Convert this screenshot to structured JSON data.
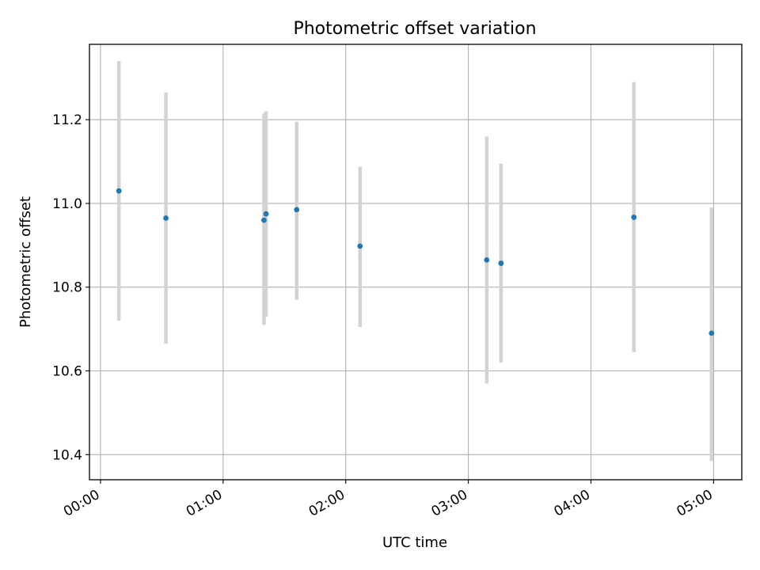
{
  "chart_data": {
    "type": "scatter",
    "title": "Photometric offset variation",
    "xlabel": "UTC time",
    "ylabel": "Photometric offset",
    "x_tick_labels": [
      "00:00",
      "01:00",
      "02:00",
      "03:00",
      "04:00",
      "05:00"
    ],
    "x_tick_hours": [
      0,
      1,
      2,
      3,
      4,
      5
    ],
    "y_tick_labels": [
      "10.4",
      "10.6",
      "10.8",
      "11.0",
      "11.2"
    ],
    "y_tick_values": [
      10.4,
      10.6,
      10.8,
      11.0,
      11.2
    ],
    "xlim_hours": [
      -0.09,
      5.23
    ],
    "ylim": [
      10.34,
      11.38
    ],
    "grid": true,
    "marker_color": "#1f77b4",
    "errorbar_color": "#d3d3d3",
    "points": [
      {
        "x": "00:09",
        "y": 11.03,
        "ylow": 10.72,
        "yhigh": 11.34
      },
      {
        "x": "00:32",
        "y": 10.965,
        "ylow": 10.665,
        "yhigh": 11.265
      },
      {
        "x": "01:20",
        "y": 10.96,
        "ylow": 10.71,
        "yhigh": 11.215
      },
      {
        "x": "01:21",
        "y": 10.975,
        "ylow": 10.73,
        "yhigh": 11.22
      },
      {
        "x": "01:36",
        "y": 10.985,
        "ylow": 10.77,
        "yhigh": 11.195
      },
      {
        "x": "02:07",
        "y": 10.898,
        "ylow": 10.705,
        "yhigh": 11.088
      },
      {
        "x": "03:09",
        "y": 10.865,
        "ylow": 10.57,
        "yhigh": 11.16
      },
      {
        "x": "03:16",
        "y": 10.857,
        "ylow": 10.62,
        "yhigh": 11.095
      },
      {
        "x": "04:21",
        "y": 10.967,
        "ylow": 10.645,
        "yhigh": 11.29
      },
      {
        "x": "04:59",
        "y": 10.69,
        "ylow": 10.385,
        "yhigh": 10.99
      }
    ]
  }
}
